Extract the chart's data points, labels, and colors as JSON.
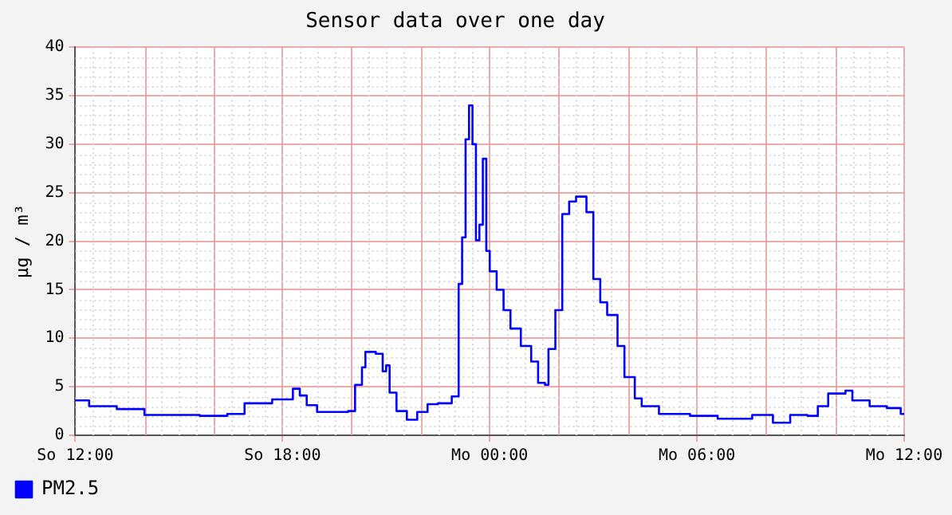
{
  "chart_data": {
    "type": "step",
    "title": "Sensor data over one day",
    "ylabel": "μg / m³",
    "categories": [
      "So 12:00",
      null,
      null,
      null,
      null,
      null,
      null,
      null,
      null,
      null,
      null,
      null,
      null,
      null,
      null,
      null,
      null,
      null,
      null,
      null,
      null,
      null,
      null,
      null,
      null,
      null,
      null,
      null,
      null,
      null,
      null,
      null,
      null,
      null,
      null,
      null,
      null,
      null,
      null,
      null,
      null,
      null,
      null,
      null,
      null,
      null,
      null,
      null,
      null,
      null,
      null,
      null,
      null,
      null,
      null,
      null,
      null,
      null,
      null,
      null,
      "So 18:00",
      null,
      null,
      null,
      null,
      null,
      null,
      null,
      null,
      null,
      null,
      null,
      null,
      null,
      null,
      null,
      null,
      null,
      null,
      null,
      null,
      null,
      null,
      null,
      null,
      null,
      null,
      null,
      null,
      null,
      null,
      null,
      null,
      null,
      null,
      null,
      null,
      null,
      null,
      null,
      null,
      null,
      null,
      null,
      null,
      null,
      null,
      null,
      null,
      null,
      null,
      null,
      null,
      null,
      null,
      null,
      null,
      null,
      null,
      null,
      "Mo 00:00",
      null,
      null,
      null,
      null,
      null,
      null,
      null,
      null,
      null,
      null,
      null,
      null,
      null,
      null,
      null,
      null,
      null,
      null,
      null,
      null,
      null,
      null,
      null,
      null,
      null,
      null,
      null,
      null,
      null,
      null,
      null,
      null,
      null,
      null,
      null,
      null,
      null,
      null,
      null,
      null,
      null,
      null,
      null,
      null,
      null,
      null,
      null,
      null,
      null,
      null,
      null,
      null,
      null,
      null,
      null,
      null,
      null,
      null,
      null,
      "Mo 06:00",
      null,
      null,
      null,
      null,
      null,
      null,
      null,
      null,
      null,
      null,
      null,
      null,
      null,
      null,
      null,
      null,
      null,
      null,
      null,
      null,
      null,
      null,
      null,
      null,
      null,
      null,
      null,
      null,
      null,
      null,
      null,
      null,
      null,
      null,
      null,
      null,
      null,
      null,
      null,
      null,
      null,
      null,
      null,
      null,
      null,
      null,
      null,
      null,
      null,
      null,
      null,
      null,
      null,
      null,
      null,
      null,
      null,
      null,
      null,
      "Mo 12:00"
    ],
    "series": [
      {
        "name": "PM2.5",
        "color": "#0000ff",
        "values": [
          3.6,
          3.6,
          3.6,
          3.6,
          3.6,
          3.0,
          3.0,
          3.0,
          3.0,
          3.0,
          3.0,
          3.0,
          3.0,
          2.7,
          2.7,
          2.7,
          2.7,
          2.7,
          2.7,
          2.7,
          2.7,
          2.1,
          2.1,
          2.1,
          2.1,
          2.1,
          2.1,
          2.1,
          2.1,
          2.1,
          2.1,
          2.1,
          2.1,
          2.1,
          2.1,
          2.1,
          2.1,
          2.0,
          2.0,
          2.0,
          2.0,
          2.0,
          2.0,
          2.0,
          2.0,
          2.2,
          2.2,
          2.2,
          2.2,
          2.2,
          3.3,
          3.3,
          3.3,
          3.3,
          3.3,
          3.3,
          3.3,
          3.3,
          3.7,
          3.7,
          3.7,
          3.7,
          3.7,
          3.7,
          4.8,
          4.8,
          4.1,
          4.1,
          3.1,
          3.1,
          3.1,
          2.4,
          2.4,
          2.4,
          2.4,
          2.4,
          2.4,
          2.4,
          2.4,
          2.4,
          2.5,
          2.5,
          5.2,
          5.2,
          7.0,
          8.6,
          8.6,
          8.6,
          8.4,
          8.4,
          6.6,
          7.2,
          4.4,
          4.4,
          2.5,
          2.5,
          2.5,
          1.6,
          1.6,
          1.6,
          2.4,
          2.4,
          2.4,
          3.2,
          3.2,
          3.2,
          3.3,
          3.3,
          3.3,
          3.3,
          4.0,
          4.0,
          15.6,
          20.4,
          30.5,
          34.0,
          30.0,
          20.1,
          21.7,
          28.5,
          19.0,
          16.9,
          16.9,
          15.0,
          15.0,
          12.9,
          12.9,
          11.0,
          11.0,
          11.0,
          9.2,
          9.2,
          9.2,
          7.6,
          7.6,
          5.4,
          5.4,
          5.2,
          8.9,
          8.9,
          12.9,
          12.9,
          22.8,
          22.8,
          24.1,
          24.1,
          24.6,
          24.6,
          24.6,
          23.0,
          23.0,
          16.1,
          16.1,
          13.7,
          13.7,
          12.4,
          12.4,
          12.4,
          9.2,
          9.2,
          6.0,
          6.0,
          6.0,
          3.8,
          3.8,
          3.0,
          3.0,
          3.0,
          3.0,
          3.0,
          2.2,
          2.2,
          2.2,
          2.2,
          2.2,
          2.2,
          2.2,
          2.2,
          2.2,
          2.0,
          2.0,
          2.0,
          2.0,
          2.0,
          2.0,
          2.0,
          2.0,
          1.7,
          1.7,
          1.7,
          1.7,
          1.7,
          1.7,
          1.7,
          1.7,
          1.7,
          1.7,
          2.1,
          2.1,
          2.1,
          2.1,
          2.1,
          2.1,
          1.3,
          1.3,
          1.3,
          1.3,
          1.3,
          2.1,
          2.1,
          2.1,
          2.1,
          2.1,
          2.0,
          2.0,
          2.0,
          3.0,
          3.0,
          3.0,
          4.3,
          4.3,
          4.3,
          4.3,
          4.3,
          4.6,
          4.6,
          3.6,
          3.6,
          3.6,
          3.6,
          3.6,
          3.0,
          3.0,
          3.0,
          3.0,
          3.0,
          2.8,
          2.8,
          2.8,
          2.8,
          2.2
        ]
      }
    ],
    "ylim": [
      0,
      40
    ],
    "yticks": [
      0,
      5,
      10,
      15,
      20,
      25,
      30,
      35,
      40
    ],
    "grid": true,
    "legend": "bottom left",
    "marker": "none",
    "line_style": "solid"
  }
}
